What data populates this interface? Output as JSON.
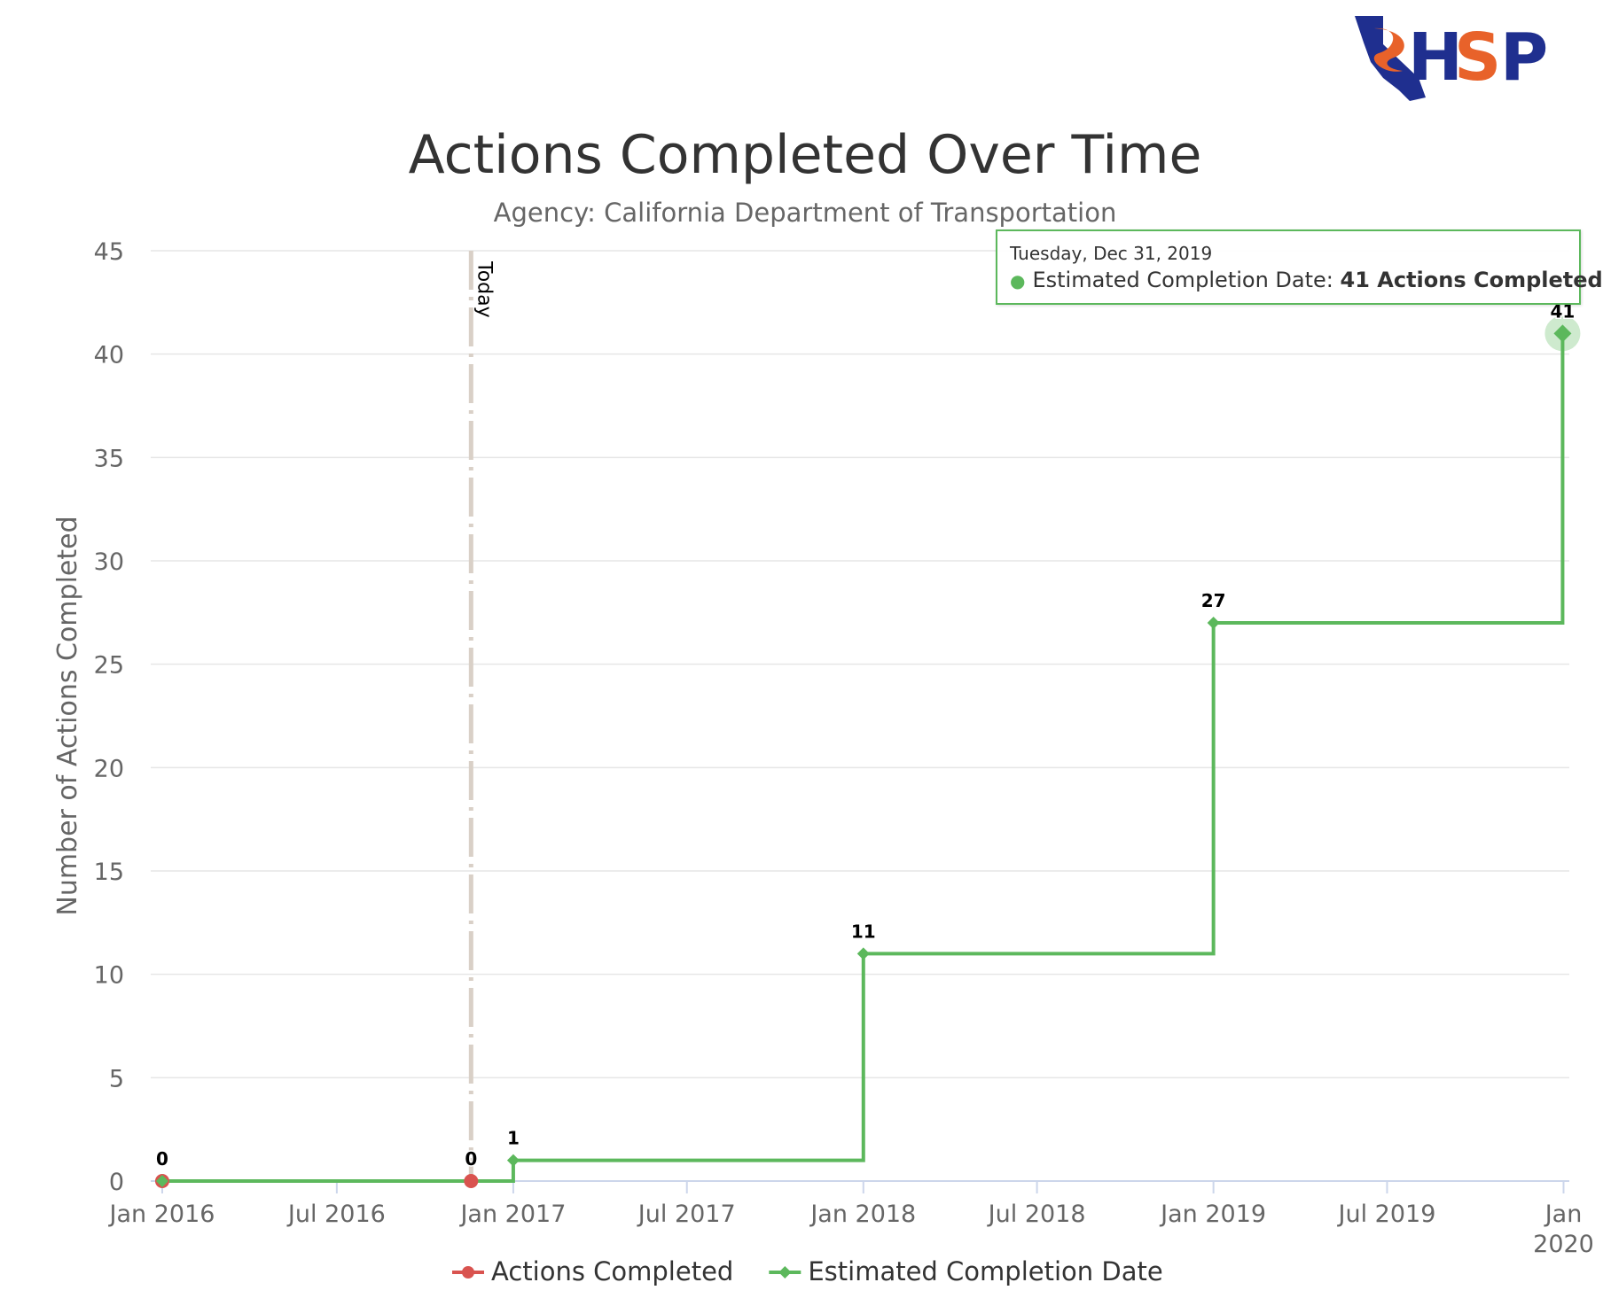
{
  "logo": {
    "text": "HSP",
    "colors": {
      "state": "#1f2f8f",
      "flame": "#e8622a"
    }
  },
  "chart_data": {
    "type": "line",
    "title": "Actions Completed Over Time",
    "subtitle": "Agency: California Department of Transportation",
    "ylabel": "Number of Actions Completed",
    "xlabel": "",
    "ylim": [
      0,
      45
    ],
    "yticks": [
      "0",
      "5",
      "10",
      "15",
      "20",
      "25",
      "30",
      "35",
      "40",
      "45"
    ],
    "xticks": [
      {
        "date": "2016-01-01",
        "label": [
          "Jan 2016"
        ]
      },
      {
        "date": "2016-07-01",
        "label": [
          "Jul 2016"
        ]
      },
      {
        "date": "2017-01-01",
        "label": [
          "Jan 2017"
        ]
      },
      {
        "date": "2017-07-01",
        "label": [
          "Jul 2017"
        ]
      },
      {
        "date": "2018-01-01",
        "label": [
          "Jan 2018"
        ]
      },
      {
        "date": "2018-07-01",
        "label": [
          "Jul 2018"
        ]
      },
      {
        "date": "2019-01-01",
        "label": [
          "Jan 2019"
        ]
      },
      {
        "date": "2019-07-01",
        "label": [
          "Jul 2019"
        ]
      },
      {
        "date": "2020-01-01",
        "label": [
          "Jan",
          "2020"
        ]
      }
    ],
    "xlim": [
      "2015-12-20",
      "2020-01-07"
    ],
    "grid": true,
    "legend_position": "bottom-center",
    "today": {
      "date": "2016-11-18",
      "label": "Today",
      "color": "#d9d0c7"
    },
    "series": [
      {
        "name": "Actions Completed",
        "color": "#d9534f",
        "marker": "circle",
        "step": true,
        "points": [
          {
            "x": "2016-01-01",
            "y": 0,
            "label": "0"
          },
          {
            "x": "2016-11-18",
            "y": 0,
            "label": "0"
          }
        ]
      },
      {
        "name": "Estimated Completion Date",
        "color": "#5cb85c",
        "marker": "diamond",
        "step": true,
        "points": [
          {
            "x": "2016-01-01",
            "y": 0
          },
          {
            "x": "2017-01-01",
            "y": 1,
            "label": "1"
          },
          {
            "x": "2018-01-01",
            "y": 11,
            "label": "11"
          },
          {
            "x": "2019-01-01",
            "y": 27,
            "label": "27"
          },
          {
            "x": "2019-12-31",
            "y": 41,
            "label": "41"
          }
        ]
      }
    ],
    "tooltip": {
      "date": "Tuesday, Dec 31, 2019",
      "series": "Estimated Completion Date",
      "separator": ":",
      "value": "41 Actions Completed",
      "hovered_point": 4
    }
  }
}
